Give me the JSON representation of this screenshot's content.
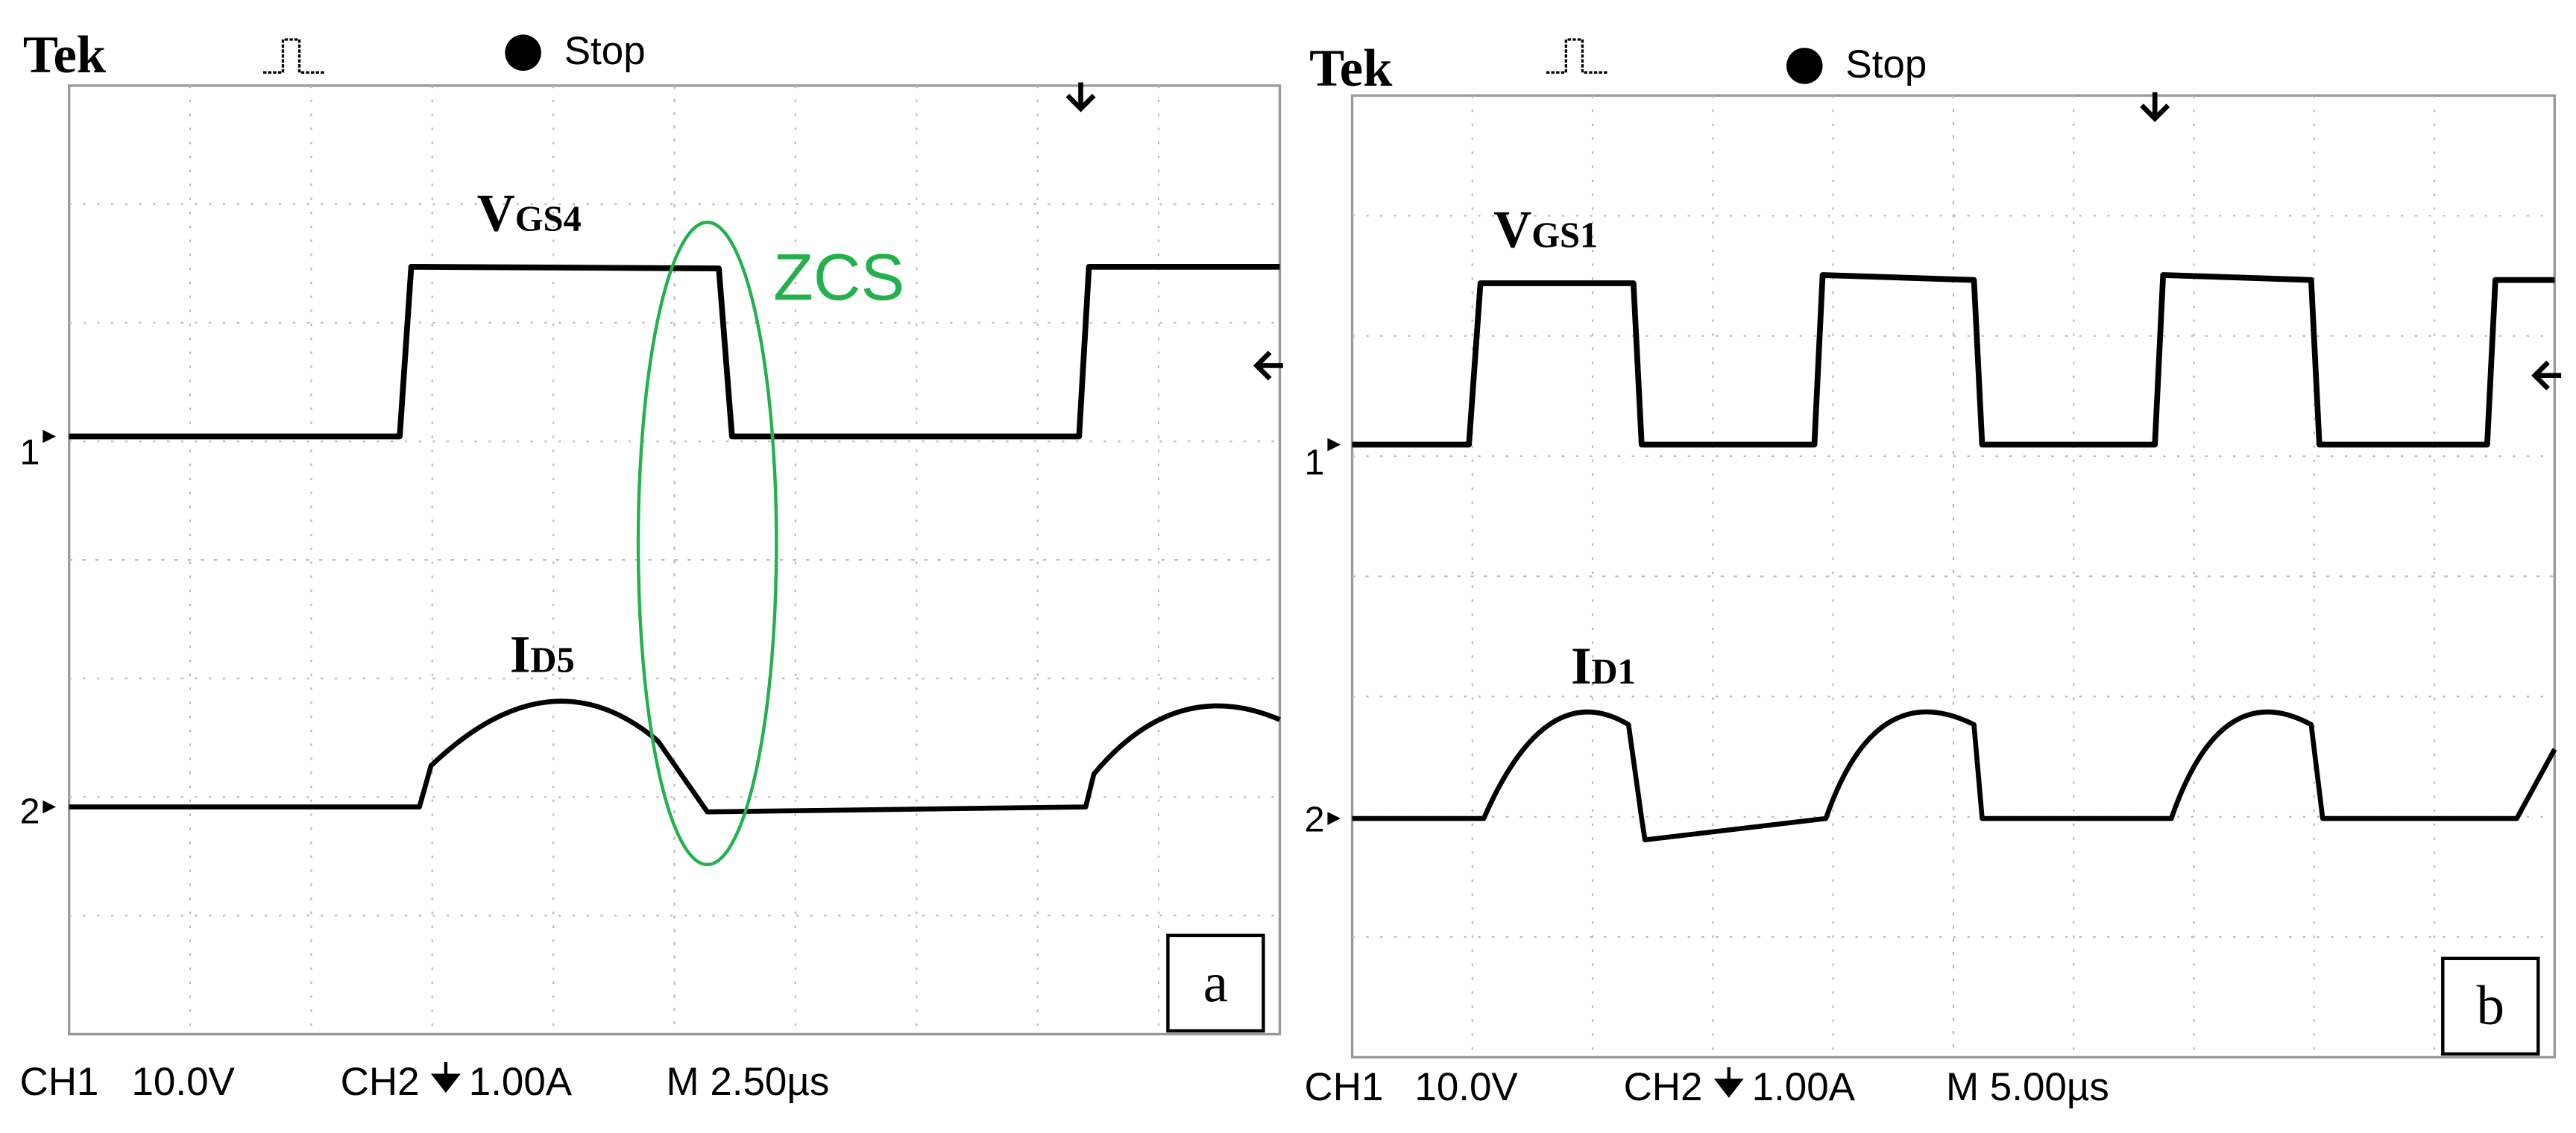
{
  "panels": [
    {
      "brand": "Tek",
      "status": "Stop",
      "traces": [
        {
          "label": "V",
          "subscript": "GS4",
          "marker": "1"
        },
        {
          "label": "I",
          "subscript": "D5",
          "marker": "2"
        }
      ],
      "annotation": "ZCS",
      "tag": "a",
      "readout": {
        "ch1": "CH1",
        "ch1_scale": "10.0V",
        "ch2": "CH2",
        "ch2_scale": "1.00A",
        "timebase": "M 2.50µs"
      }
    },
    {
      "brand": "Tek",
      "status": "Stop",
      "traces": [
        {
          "label": "V",
          "subscript": "GS1",
          "marker": "1"
        },
        {
          "label": "I",
          "subscript": "D1",
          "marker": "2"
        }
      ],
      "tag": "b",
      "readout": {
        "ch1": "CH1",
        "ch1_scale": "10.0V",
        "ch2": "CH2",
        "ch2_scale": "1.00A",
        "timebase": "M 5.00µs"
      }
    }
  ]
}
